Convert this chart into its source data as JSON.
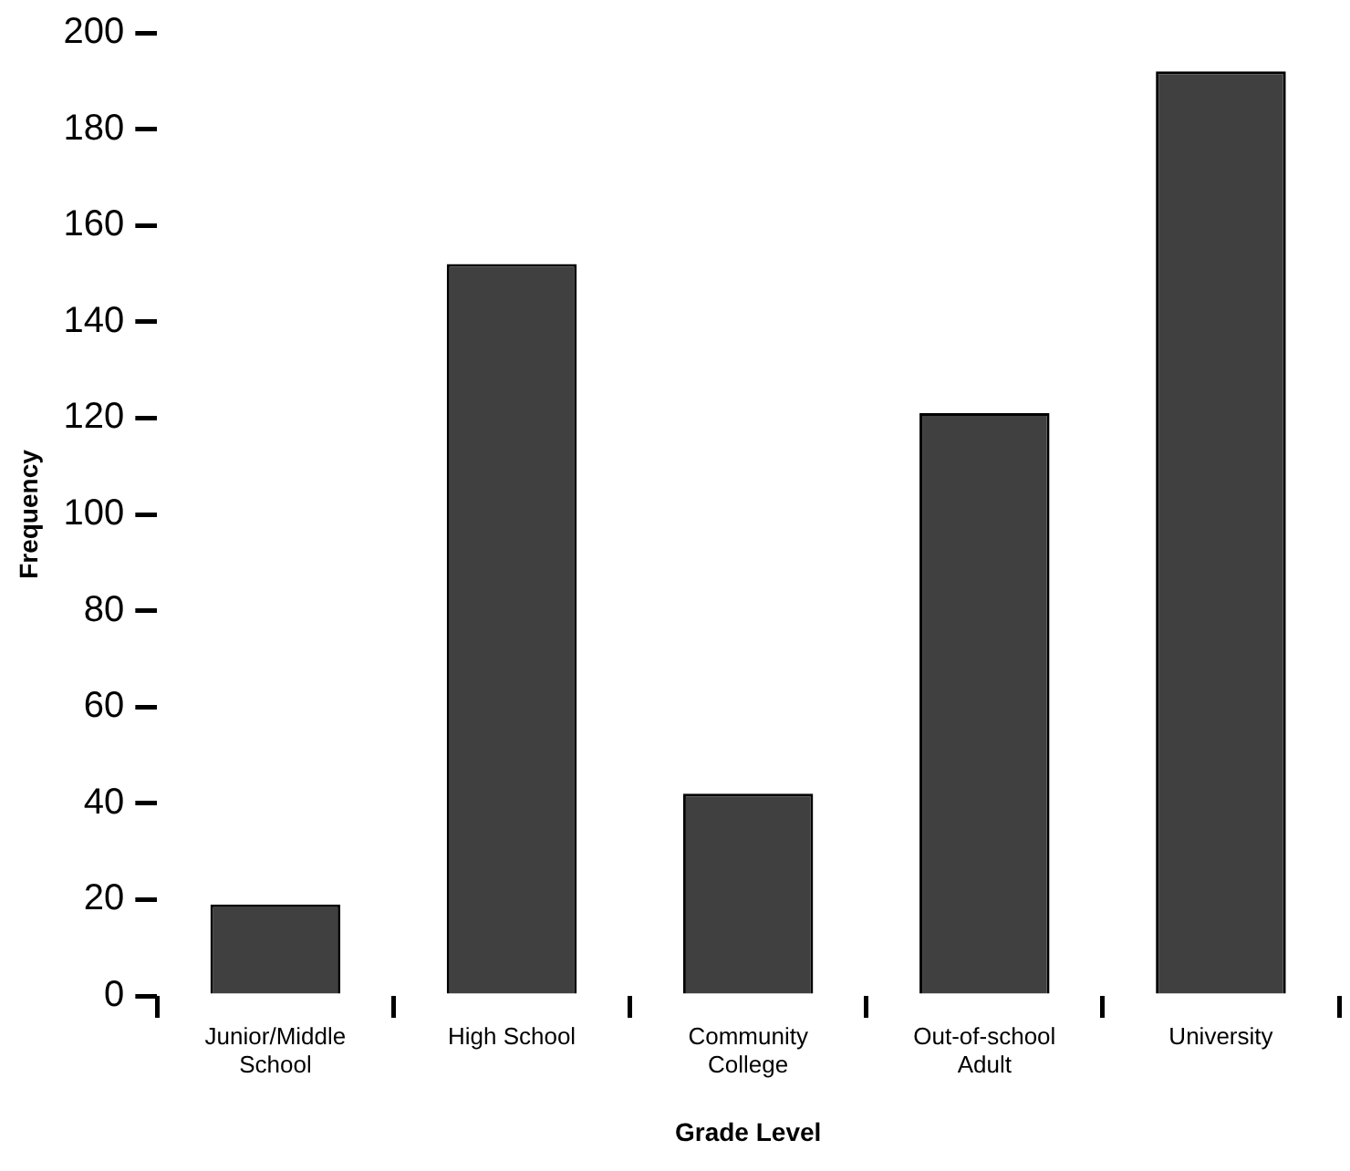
{
  "chart_data": {
    "type": "bar",
    "xlabel": "Grade Level",
    "ylabel": "Frequency",
    "categories": [
      "Junior/Middle School",
      "High School",
      "Community College",
      "Out-of-school Adult",
      "University"
    ],
    "values": [
      19,
      152,
      42,
      121,
      192
    ],
    "color": "#404040",
    "ylim": [
      0,
      200
    ],
    "yticks": [
      0,
      20,
      40,
      60,
      80,
      100,
      120,
      140,
      160,
      180,
      200
    ],
    "grid": false
  }
}
